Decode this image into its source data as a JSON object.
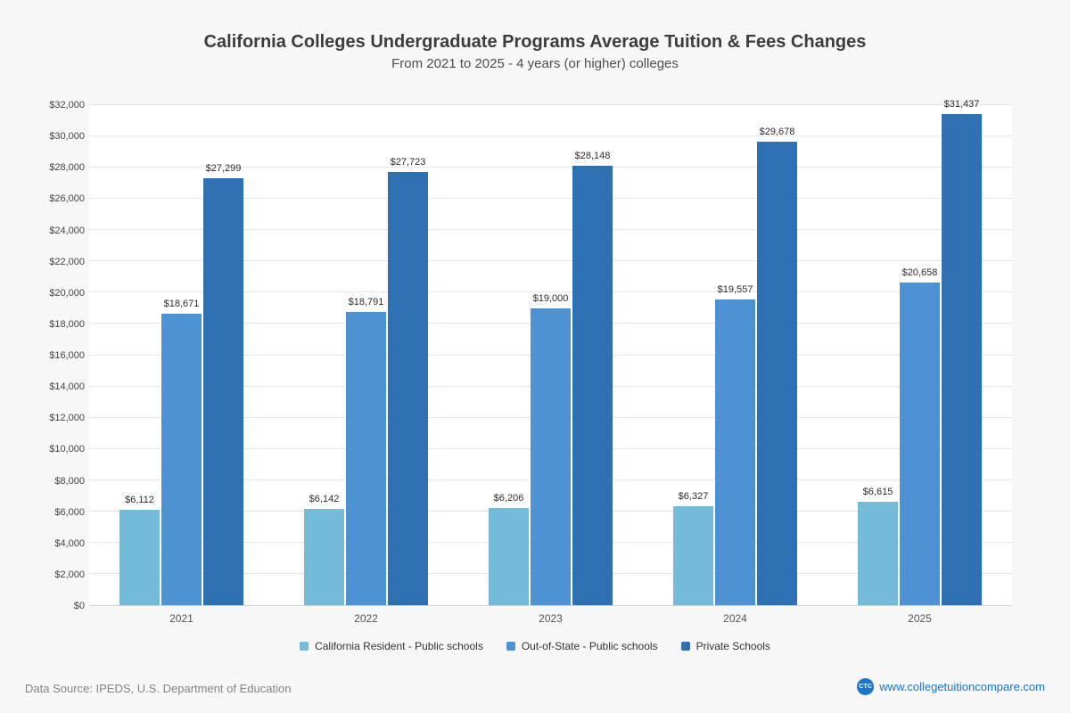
{
  "chart_data": {
    "type": "bar",
    "title": "California Colleges Undergraduate Programs Average Tuition & Fees Changes",
    "subtitle": "From 2021 to 2025 - 4 years (or higher) colleges",
    "categories": [
      "2021",
      "2022",
      "2023",
      "2024",
      "2025"
    ],
    "series": [
      {
        "key": "ca-resident-public",
        "name": "California Resident - Public schools",
        "color": "#74bbd9",
        "values": [
          6112,
          6142,
          6206,
          6327,
          6615
        ],
        "labels": [
          "$6,112",
          "$6,142",
          "$6,206",
          "$6,327",
          "$6,615"
        ]
      },
      {
        "key": "out-of-state-public",
        "name": "Out-of-State - Public schools",
        "color": "#4d93d4",
        "values": [
          18671,
          18791,
          19000,
          19557,
          20658
        ],
        "labels": [
          "$18,671",
          "$18,791",
          "$19,000",
          "$19,557",
          "$20,658"
        ]
      },
      {
        "key": "private-schools",
        "name": "Private Schools",
        "color": "#2d71b2",
        "values": [
          27299,
          27723,
          28148,
          29678,
          31437
        ],
        "labels": [
          "$27,299",
          "$27,723",
          "$28,148",
          "$29,678",
          "$31,437"
        ]
      }
    ],
    "xlabel": "",
    "ylabel": "",
    "ylim": [
      0,
      32000
    ],
    "ytick_step": 2000,
    "ytick_labels": [
      "$0",
      "$2,000",
      "$4,000",
      "$6,000",
      "$8,000",
      "$10,000",
      "$12,000",
      "$14,000",
      "$16,000",
      "$18,000",
      "$20,000",
      "$22,000",
      "$24,000",
      "$26,000",
      "$28,000",
      "$30,000",
      "$32,000"
    ],
    "grid": true,
    "legend_position": "bottom"
  },
  "footer": {
    "source": "Data Source: IPEDS, U.S. Department of Education",
    "site": "www.collegetuitioncompare.com",
    "logo_text": "CTC"
  }
}
